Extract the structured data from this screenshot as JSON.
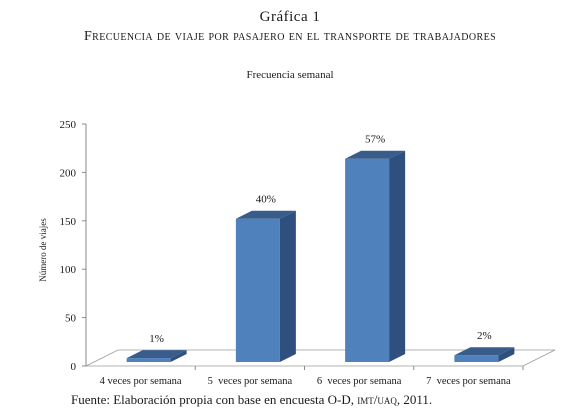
{
  "figure": {
    "label": "Gráfica 1",
    "title": "Frecuencia de viaje por pasajero en el transporte de trabajadores"
  },
  "chart_data": {
    "type": "bar",
    "title": "Frecuencia semanal",
    "xlabel": "",
    "ylabel": "Número de viajes",
    "categories": [
      "4 veces por semana",
      "5  veces por semana",
      "6  veces por semana",
      "7  veces por semana"
    ],
    "values": [
      4,
      148,
      210,
      7
    ],
    "data_labels": [
      "1%",
      "40%",
      "57%",
      "2%"
    ],
    "ylim": [
      0,
      250
    ],
    "yticks": [
      "0",
      "50",
      "100",
      "150",
      "200",
      "250"
    ],
    "grid": false,
    "legend": "none",
    "style": "3d-column",
    "colors": {
      "bar_front": "#4f81bd",
      "bar_side": "#2f4f7f",
      "bar_top": "#385d8a"
    }
  },
  "source": {
    "prefix": "Fuente: Elaboración propia con base en encuesta O-D, ",
    "smallcaps": "imt/uaq",
    "suffix": ", 2011."
  }
}
